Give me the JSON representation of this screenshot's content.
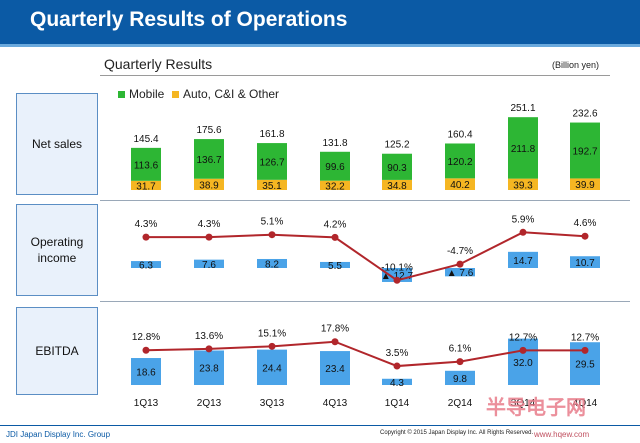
{
  "title": "Quarterly Results of Operations",
  "subtitle": "Quarterly Results",
  "unit": "(Billion yen)",
  "legend": {
    "mobile": "Mobile",
    "auto": "Auto, C&I & Other"
  },
  "rows": {
    "net_sales": "Net sales",
    "operating_income": "Operating\nincome",
    "ebitda": "EBITDA"
  },
  "colors": {
    "mobile": "#2db634",
    "auto": "#f5b622",
    "bar": "#4aa3e8",
    "line": "#b1262b",
    "title_bg": "#0b5aa5"
  },
  "footer": {
    "company": "JDI Japan Display Inc. Group",
    "copyright": "Copyright © 2015 Japan Display Inc. All Rights Reserved."
  },
  "watermark": {
    "text": "半导电子网",
    "url": "www.hqew.com"
  },
  "chart_data": [
    {
      "type": "bar",
      "stacked": true,
      "categories": [
        "1Q13",
        "2Q13",
        "3Q13",
        "4Q13",
        "1Q14",
        "2Q14",
        "3Q14",
        "4Q14"
      ],
      "series": [
        {
          "name": "Auto, C&I & Other",
          "values": [
            31.7,
            38.9,
            35.1,
            32.2,
            34.8,
            40.2,
            39.3,
            39.9
          ]
        },
        {
          "name": "Mobile",
          "values": [
            113.6,
            136.7,
            126.7,
            99.6,
            90.3,
            120.2,
            211.8,
            192.7
          ]
        }
      ],
      "totals": [
        145.4,
        175.6,
        161.8,
        131.8,
        125.2,
        160.4,
        251.1,
        232.6
      ],
      "ylim": [
        0,
        260
      ]
    },
    {
      "type": "bar+line",
      "categories": [
        "1Q13",
        "2Q13",
        "3Q13",
        "4Q13",
        "1Q14",
        "2Q14",
        "3Q14",
        "4Q14"
      ],
      "bars": [
        6.3,
        7.6,
        8.2,
        5.5,
        -12.7,
        -7.6,
        14.7,
        10.7
      ],
      "bar_labels": [
        "6.3",
        "7.6",
        "8.2",
        "5.5",
        "▲ 12.7",
        "▲ 7.6",
        "14.7",
        "10.7"
      ],
      "line": [
        4.3,
        4.3,
        5.1,
        4.2,
        -10.1,
        -4.7,
        5.9,
        4.6
      ],
      "line_labels": [
        "4.3%",
        "4.3%",
        "5.1%",
        "4.2%",
        "-10.1%",
        "-4.7%",
        "5.9%",
        "4.6%"
      ]
    },
    {
      "type": "bar+line",
      "categories": [
        "1Q13",
        "2Q13",
        "3Q13",
        "4Q13",
        "1Q14",
        "2Q14",
        "3Q14",
        "4Q14"
      ],
      "bars": [
        18.6,
        23.8,
        24.4,
        23.4,
        4.3,
        9.8,
        32.0,
        29.5
      ],
      "bar_labels": [
        "18.6",
        "23.8",
        "24.4",
        "23.4",
        "4.3",
        "9.8",
        "32.0",
        "29.5"
      ],
      "line": [
        12.8,
        13.6,
        15.1,
        17.8,
        3.5,
        6.1,
        12.7,
        12.7
      ],
      "line_labels": [
        "12.8%",
        "13.6%",
        "15.1%",
        "17.8%",
        "3.5%",
        "6.1%",
        "12.7%",
        "12.7%"
      ]
    }
  ]
}
